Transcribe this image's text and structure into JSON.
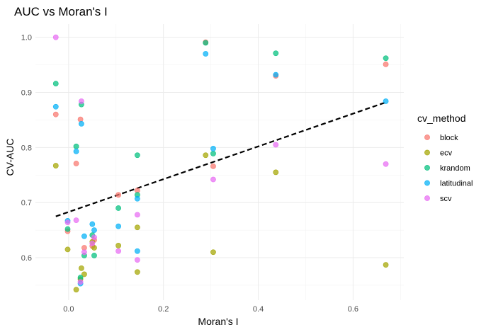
{
  "chart_data": {
    "type": "scatter",
    "title": "AUC vs Moran's I",
    "xlabel": "Moran's I",
    "ylabel": "CV-AUC",
    "xlim": [
      -0.07,
      0.707
    ],
    "ylim": [
      0.523,
      1.024
    ],
    "x_ticks": [
      0.0,
      0.2,
      0.4,
      0.6
    ],
    "x_tick_labels": [
      "0.0",
      "0.2",
      "0.4",
      "0.6"
    ],
    "y_ticks": [
      0.6,
      0.7,
      0.8,
      0.9,
      1.0
    ],
    "y_tick_labels": [
      "0.6",
      "0.7",
      "0.8",
      "0.9",
      "1.0"
    ],
    "grid": true,
    "legend": {
      "title": "cv_method",
      "position": "right"
    },
    "series": [
      {
        "name": "block",
        "color": "#F8766D",
        "points": [
          [
            -0.027,
            0.86
          ],
          [
            -0.002,
            0.648
          ],
          [
            0.016,
            0.771
          ],
          [
            0.025,
            0.851
          ],
          [
            0.033,
            0.618
          ],
          [
            0.05,
            0.621
          ],
          [
            0.054,
            0.632
          ],
          [
            0.105,
            0.714
          ],
          [
            0.145,
            0.722
          ],
          [
            0.289,
            0.991
          ],
          [
            0.305,
            0.766
          ],
          [
            0.437,
            0.93
          ],
          [
            0.669,
            0.951
          ]
        ]
      },
      {
        "name": "ecv",
        "color": "#A3A500",
        "points": [
          [
            -0.027,
            0.767
          ],
          [
            -0.002,
            0.615
          ],
          [
            0.016,
            0.542
          ],
          [
            0.025,
            0.561
          ],
          [
            0.027,
            0.581
          ],
          [
            0.033,
            0.57
          ],
          [
            0.05,
            0.629
          ],
          [
            0.054,
            0.618
          ],
          [
            0.105,
            0.622
          ],
          [
            0.145,
            0.655
          ],
          [
            0.145,
            0.574
          ],
          [
            0.289,
            0.786
          ],
          [
            0.305,
            0.61
          ],
          [
            0.437,
            0.755
          ],
          [
            0.669,
            0.587
          ]
        ]
      },
      {
        "name": "krandom",
        "color": "#00BF7D",
        "points": [
          [
            -0.027,
            0.916
          ],
          [
            -0.002,
            0.652
          ],
          [
            0.016,
            0.802
          ],
          [
            0.025,
            0.564
          ],
          [
            0.027,
            0.878
          ],
          [
            0.033,
            0.604
          ],
          [
            0.05,
            0.641
          ],
          [
            0.054,
            0.604
          ],
          [
            0.105,
            0.69
          ],
          [
            0.145,
            0.786
          ],
          [
            0.145,
            0.714
          ],
          [
            0.289,
            0.99
          ],
          [
            0.305,
            0.789
          ],
          [
            0.437,
            0.971
          ],
          [
            0.669,
            0.962
          ]
        ]
      },
      {
        "name": "latitudinal",
        "color": "#00B0F6",
        "points": [
          [
            -0.027,
            0.874
          ],
          [
            -0.002,
            0.667
          ],
          [
            0.016,
            0.793
          ],
          [
            0.025,
            0.553
          ],
          [
            0.027,
            0.843
          ],
          [
            0.033,
            0.639
          ],
          [
            0.05,
            0.661
          ],
          [
            0.054,
            0.65
          ],
          [
            0.105,
            0.657
          ],
          [
            0.145,
            0.707
          ],
          [
            0.145,
            0.612
          ],
          [
            0.289,
            0.97
          ],
          [
            0.305,
            0.798
          ],
          [
            0.437,
            0.932
          ],
          [
            0.669,
            0.884
          ]
        ]
      },
      {
        "name": "scv",
        "color": "#E76BF3",
        "points": [
          [
            -0.027,
            1.0
          ],
          [
            -0.002,
            0.664
          ],
          [
            0.016,
            0.668
          ],
          [
            0.025,
            0.556
          ],
          [
            0.027,
            0.884
          ],
          [
            0.033,
            0.61
          ],
          [
            0.05,
            0.626
          ],
          [
            0.054,
            0.637
          ],
          [
            0.105,
            0.612
          ],
          [
            0.145,
            0.678
          ],
          [
            0.145,
            0.596
          ],
          [
            0.305,
            0.742
          ],
          [
            0.437,
            0.805
          ],
          [
            0.669,
            0.77
          ]
        ]
      }
    ],
    "trend_line": {
      "style": "dashed",
      "color": "#000000",
      "points": [
        [
          -0.027,
          0.675
        ],
        [
          0.669,
          0.882
        ]
      ]
    }
  }
}
